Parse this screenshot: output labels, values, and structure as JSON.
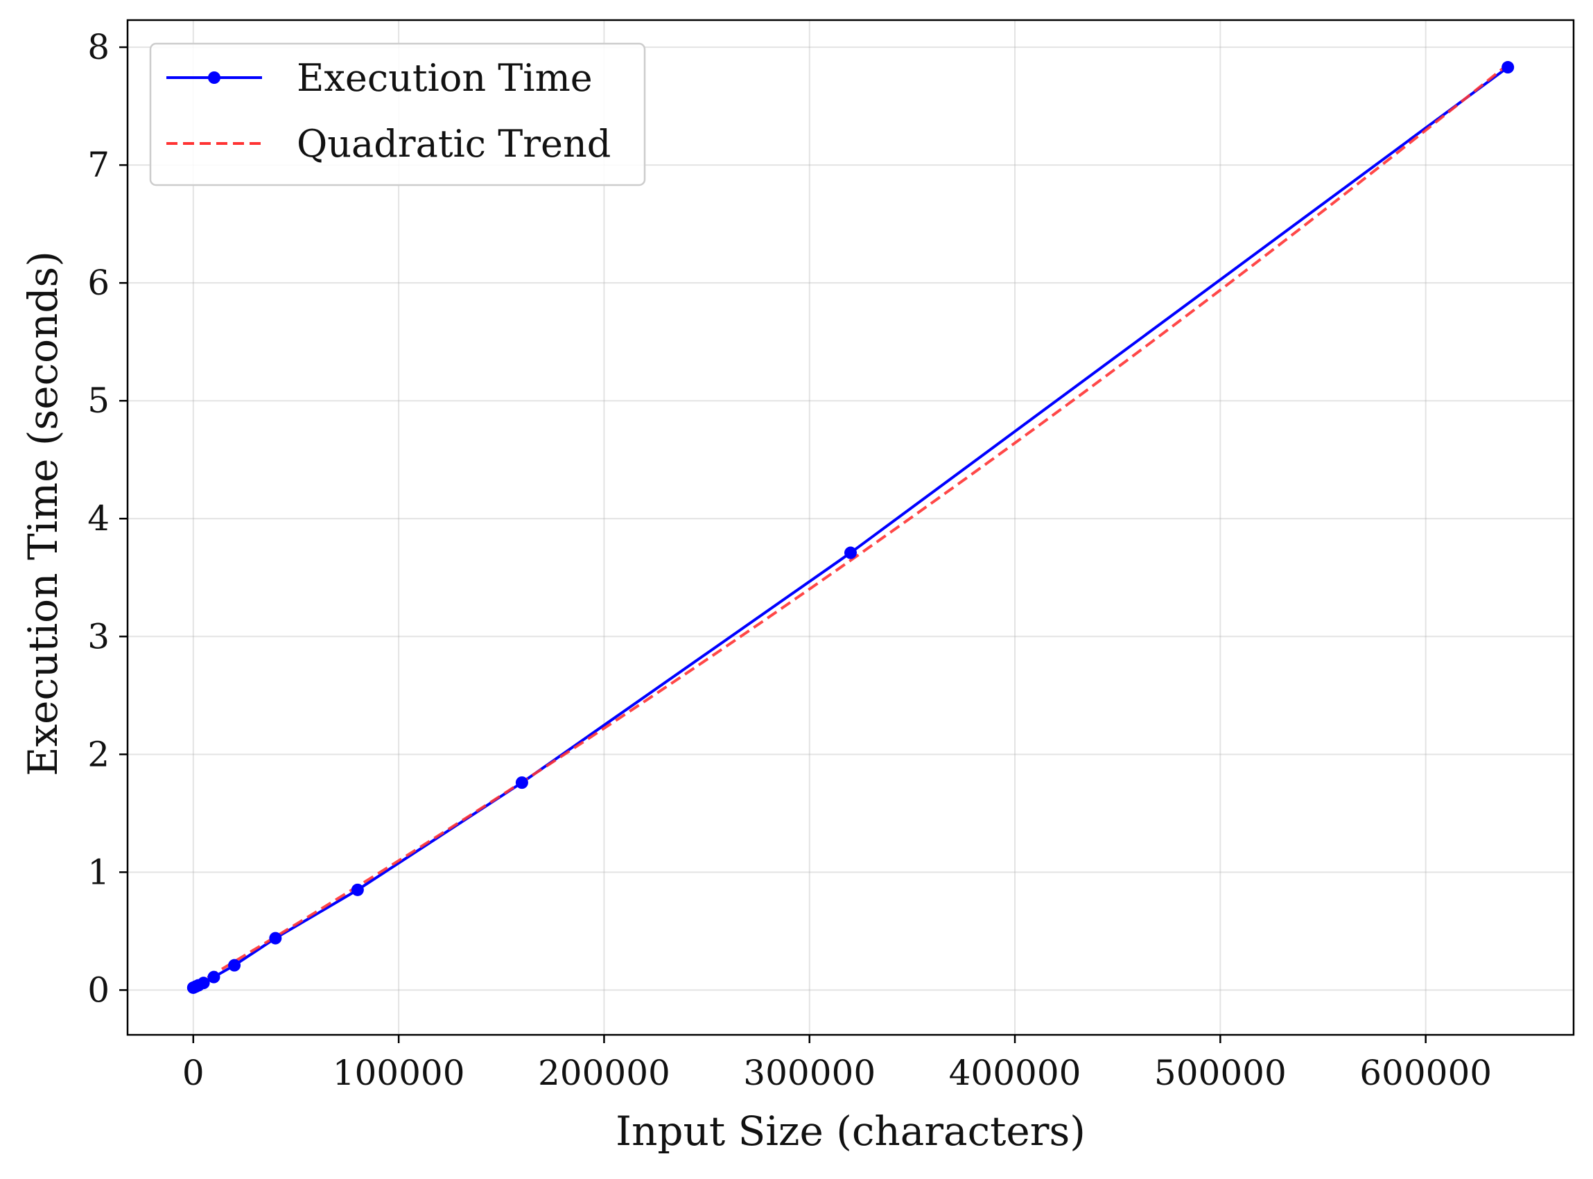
{
  "chart_data": {
    "type": "line",
    "title": "",
    "xlabel": "Input Size (characters)",
    "ylabel": "Execution Time (seconds)",
    "xlim": [
      -32000,
      672000
    ],
    "ylim": [
      -0.38,
      8.23
    ],
    "xticks": [
      0,
      100000,
      200000,
      300000,
      400000,
      500000,
      600000
    ],
    "xtick_labels": [
      "0",
      "100000",
      "200000",
      "300000",
      "400000",
      "500000",
      "600000"
    ],
    "yticks": [
      0,
      1,
      2,
      3,
      4,
      5,
      6,
      7,
      8
    ],
    "ytick_labels": [
      "0",
      "1",
      "2",
      "3",
      "4",
      "5",
      "6",
      "7",
      "8"
    ],
    "grid": true,
    "legend_position": "top-left",
    "series": [
      {
        "name": "Execution Time",
        "style": "solid line with circle markers",
        "color": "#0000ff",
        "x": [
          0,
          1250,
          2500,
          5000,
          10000,
          20000,
          40000,
          80000,
          160000,
          320000,
          640000
        ],
        "y": [
          0.02,
          0.03,
          0.04,
          0.06,
          0.11,
          0.21,
          0.44,
          0.85,
          1.76,
          3.71,
          7.83
        ]
      },
      {
        "name": "Quadratic Trend",
        "style": "dashed line",
        "color": "#ff3333",
        "coefficients": {
          "a": 2.91e-12,
          "b": 1.0358e-05,
          "c": 0.033
        },
        "x_range": [
          0,
          640000
        ]
      }
    ]
  }
}
